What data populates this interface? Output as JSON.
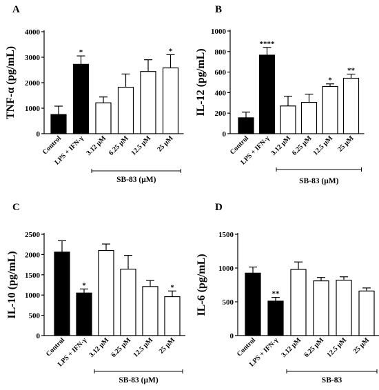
{
  "chart_data": [
    {
      "panel": "A",
      "type": "bar",
      "ylabel": "TNF-α (pg/mL)",
      "ylim": [
        0,
        4000
      ],
      "yticks": [
        0,
        1000,
        2000,
        3000,
        4000
      ],
      "categories": [
        "Control",
        "LPS + IFN-γ",
        "3.12 μM",
        "6.25 μM",
        "12.5 μM",
        "25 μM"
      ],
      "values": [
        750,
        2720,
        1210,
        1820,
        2440,
        2580
      ],
      "errors": [
        330,
        330,
        230,
        520,
        460,
        520
      ],
      "significance": [
        "",
        "*",
        "",
        "",
        "",
        "*"
      ],
      "fills": [
        "black",
        "black",
        "white",
        "white",
        "white",
        "white"
      ],
      "group_label": "SB-83 (μM)"
    },
    {
      "panel": "B",
      "type": "bar",
      "ylabel": "IL-12 (pg/mL)",
      "ylim": [
        0,
        1000
      ],
      "yticks": [
        0,
        200,
        400,
        600,
        800,
        1000
      ],
      "categories": [
        "Control",
        "LPS + IFN-γ",
        "3.12 μM",
        "6.25 μM",
        "12.5 μM",
        "25 μM"
      ],
      "values": [
        155,
        765,
        270,
        305,
        460,
        540
      ],
      "errors": [
        55,
        75,
        95,
        80,
        25,
        40
      ],
      "significance": [
        "",
        "****",
        "",
        "",
        "*",
        "**"
      ],
      "fills": [
        "black",
        "black",
        "white",
        "white",
        "white",
        "white"
      ],
      "group_label": "SB-83 (μM)"
    },
    {
      "panel": "C",
      "type": "bar",
      "ylabel": "IL-10 (pg/mL)",
      "ylim": [
        0,
        2500
      ],
      "yticks": [
        0,
        500,
        1000,
        1500,
        2000,
        2500
      ],
      "categories": [
        "Control",
        "LPS + IFN-γ",
        "3.12 μM",
        "6.25 μM",
        "12.5 μM",
        "25 μM"
      ],
      "values": [
        2060,
        1050,
        2100,
        1640,
        1210,
        960
      ],
      "errors": [
        280,
        100,
        160,
        340,
        150,
        140
      ],
      "significance": [
        "",
        "*",
        "",
        "",
        "",
        "*"
      ],
      "fills": [
        "black",
        "black",
        "white",
        "white",
        "white",
        "white"
      ],
      "group_label": "SB-83 (μM)"
    },
    {
      "panel": "D",
      "type": "bar",
      "ylabel": "IL-6 (pg/mL)",
      "ylim": [
        0,
        1500
      ],
      "yticks": [
        0,
        500,
        1000,
        1500
      ],
      "categories": [
        "Control",
        "LPS + IFN-γ",
        "3.12 μM",
        "6.25 μM",
        "12.5 μM",
        "25 μM"
      ],
      "values": [
        925,
        510,
        980,
        810,
        820,
        660
      ],
      "errors": [
        90,
        55,
        110,
        50,
        50,
        45
      ],
      "significance": [
        "",
        "**",
        "",
        "",
        "",
        ""
      ],
      "fills": [
        "black",
        "black",
        "white",
        "white",
        "white",
        "white"
      ],
      "group_label": "SB-83"
    }
  ]
}
